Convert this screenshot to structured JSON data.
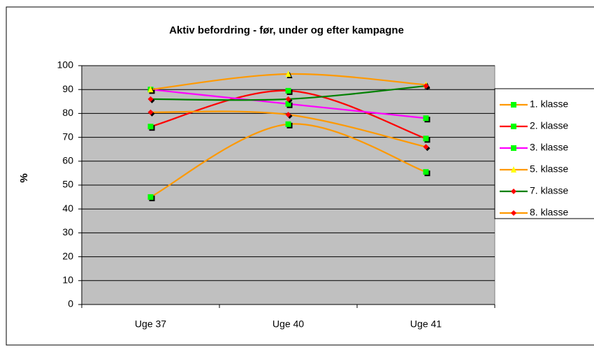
{
  "chart_data": {
    "type": "line",
    "title": "Aktiv befordring - før, under og efter kampagne",
    "y_label": "%",
    "categories": [
      "Uge 37",
      "Uge 40",
      "Uge 41"
    ],
    "series": [
      {
        "name": "1. klasse",
        "color": "#ff9900",
        "marker": "square",
        "marker_color": "#00ff00",
        "values": [
          45,
          75.5,
          55.5
        ]
      },
      {
        "name": "2. klasse",
        "color": "#ff0000",
        "marker": "square",
        "marker_color": "#00ff00",
        "values": [
          74.5,
          89.5,
          69.5
        ]
      },
      {
        "name": "3. klasse",
        "color": "#ff00ff",
        "marker": "square",
        "marker_color": "#00ff00",
        "values": [
          90,
          84,
          78
        ]
      },
      {
        "name": "5. klasse",
        "color": "#ff9900",
        "marker": "triangle",
        "marker_color": "#ffff00",
        "values": [
          90,
          96.5,
          92
        ]
      },
      {
        "name": "7. klasse",
        "color": "#008000",
        "marker": "diamond",
        "marker_color": "#ff0000",
        "values": [
          86,
          86,
          91.5
        ]
      },
      {
        "name": "8. klasse",
        "color": "#ff9900",
        "marker": "diamond",
        "marker_color": "#ff0000",
        "values": [
          80.5,
          79.5,
          66
        ]
      }
    ],
    "ylim": [
      0,
      100
    ],
    "yticks": [
      0,
      10,
      20,
      30,
      40,
      50,
      60,
      70,
      80,
      90,
      100
    ],
    "grid": true,
    "smooth": true
  }
}
